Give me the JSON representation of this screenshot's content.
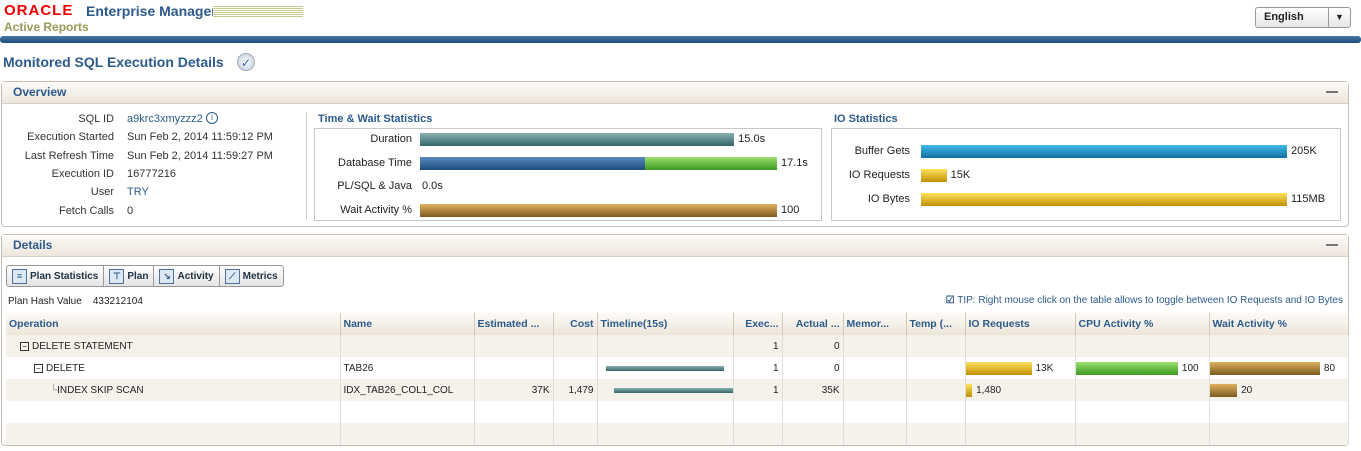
{
  "header": {
    "brand": "ORACLE",
    "product": "Enterprise Manager",
    "subtitle": "Active Reports",
    "language": "English"
  },
  "page_title": "Monitored SQL Execution Details",
  "overview": {
    "title": "Overview",
    "fields": [
      {
        "label": "SQL ID",
        "value": "a9krc3xmyzzz2"
      },
      {
        "label": "Execution Started",
        "value": "Sun Feb 2, 2014 11:59:12 PM"
      },
      {
        "label": "Last Refresh Time",
        "value": "Sun Feb 2, 2014 11:59:27 PM"
      },
      {
        "label": "Execution ID",
        "value": "16777216"
      },
      {
        "label": "User",
        "value": "TRY"
      },
      {
        "label": "Fetch Calls",
        "value": "0"
      }
    ],
    "time_wait": {
      "title": "Time & Wait Statistics",
      "rows": [
        {
          "label": "Duration",
          "value": "15.0s",
          "fraction": 0.88
        },
        {
          "label": "Database Time",
          "value": "17.1s",
          "fraction": 1.0,
          "split": 0.63
        },
        {
          "label": "PL/SQL & Java",
          "value": "0.0s",
          "fraction": 0
        },
        {
          "label": "Wait Activity %",
          "value": "100",
          "fraction": 1.0
        }
      ]
    },
    "io": {
      "title": "IO Statistics",
      "rows": [
        {
          "label": "Buffer Gets",
          "value": "205K",
          "fraction": 1.0
        },
        {
          "label": "IO Requests",
          "value": "15K",
          "fraction": 0.07
        },
        {
          "label": "IO Bytes",
          "value": "115MB",
          "fraction": 1.0
        }
      ]
    }
  },
  "details": {
    "title": "Details",
    "tabs": [
      "Plan Statistics",
      "Plan",
      "Activity",
      "Metrics"
    ],
    "plan_hash_label": "Plan Hash Value",
    "plan_hash": "433212104",
    "tip": "TIP: Right mouse click on the table allows to toggle between IO Requests and IO Bytes",
    "columns": [
      "Operation",
      "Name",
      "Estimated ...",
      "Cost",
      "Timeline(15s)",
      "Exec...",
      "Actual ...",
      "Memor...",
      "Temp (...",
      "IO Requests",
      "CPU Activity %",
      "Wait Activity %"
    ],
    "rows": [
      {
        "op": "DELETE STATEMENT",
        "name": "",
        "est": "",
        "cost": "",
        "exec": "1",
        "actual": "0",
        "io": "",
        "io_frac": 0,
        "cpu": "",
        "cpu_frac": 0,
        "wait": "",
        "wait_frac": 0
      },
      {
        "op": "DELETE",
        "name": "TAB26",
        "est": "",
        "cost": "",
        "exec": "1",
        "actual": "0",
        "io": "13K",
        "io_frac": 0.6,
        "cpu": "100",
        "cpu_frac": 0.8,
        "wait": "80",
        "wait_frac": 0.8
      },
      {
        "op": "INDEX SKIP SCAN",
        "name": "IDX_TAB26_COL1_COL",
        "est": "37K",
        "cost": "1,479",
        "exec": "1",
        "actual": "35K",
        "io": "1,480",
        "io_frac": 0.06,
        "cpu": "",
        "cpu_frac": 0,
        "wait": "20",
        "wait_frac": 0.2
      }
    ]
  }
}
